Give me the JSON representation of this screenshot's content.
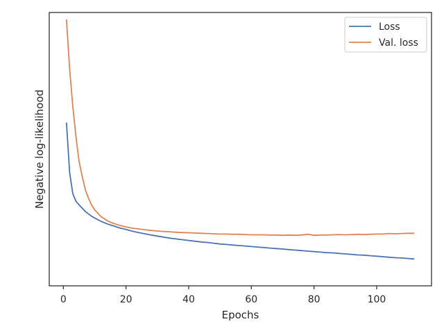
{
  "chart_data": {
    "type": "line",
    "title": "",
    "xlabel": "Epochs",
    "ylabel": "Negative log-likelihood",
    "xlim": [
      -4.5,
      117.5
    ],
    "ylim": [
      0.0,
      1.0
    ],
    "xticks": [
      0,
      20,
      40,
      60,
      80,
      100
    ],
    "yticks": [],
    "grid": false,
    "legend": "top-right",
    "colors": {
      "Loss": "#4c72b0",
      "Val. loss": "#dd8452",
      "axis": "#262626"
    },
    "series": [
      {
        "name": "Loss",
        "points": [
          [
            1,
            0.595
          ],
          [
            2,
            0.398
          ],
          [
            3,
            0.316
          ],
          [
            4,
            0.286
          ],
          [
            5,
            0.272
          ],
          [
            6,
            0.259
          ],
          [
            7,
            0.246
          ],
          [
            8,
            0.236
          ],
          [
            9,
            0.227
          ],
          [
            10,
            0.22
          ],
          [
            12,
            0.207
          ],
          [
            14,
            0.197
          ],
          [
            16,
            0.189
          ],
          [
            18,
            0.181
          ],
          [
            20,
            0.175
          ],
          [
            22,
            0.168
          ],
          [
            24,
            0.163
          ],
          [
            26,
            0.158
          ],
          [
            28,
            0.153
          ],
          [
            30,
            0.149
          ],
          [
            32,
            0.145
          ],
          [
            34,
            0.141
          ],
          [
            36,
            0.138
          ],
          [
            38,
            0.135
          ],
          [
            40,
            0.132
          ],
          [
            42,
            0.129
          ],
          [
            44,
            0.126
          ],
          [
            46,
            0.124
          ],
          [
            48,
            0.121
          ],
          [
            50,
            0.118
          ],
          [
            52,
            0.116
          ],
          [
            54,
            0.114
          ],
          [
            56,
            0.112
          ],
          [
            58,
            0.11
          ],
          [
            60,
            0.108
          ],
          [
            62,
            0.106
          ],
          [
            64,
            0.104
          ],
          [
            66,
            0.102
          ],
          [
            68,
            0.1
          ],
          [
            70,
            0.098
          ],
          [
            72,
            0.096
          ],
          [
            74,
            0.094
          ],
          [
            76,
            0.092
          ],
          [
            78,
            0.09
          ],
          [
            80,
            0.088
          ],
          [
            82,
            0.086
          ],
          [
            84,
            0.084
          ],
          [
            86,
            0.083
          ],
          [
            88,
            0.081
          ],
          [
            90,
            0.079
          ],
          [
            92,
            0.077
          ],
          [
            94,
            0.075
          ],
          [
            96,
            0.074
          ],
          [
            98,
            0.072
          ],
          [
            100,
            0.07
          ],
          [
            102,
            0.068
          ],
          [
            104,
            0.066
          ],
          [
            106,
            0.064
          ],
          [
            108,
            0.063
          ],
          [
            110,
            0.061
          ],
          [
            112,
            0.059
          ]
        ]
      },
      {
        "name": "Val. loss",
        "points": [
          [
            1,
            1.0
          ],
          [
            2,
            0.805
          ],
          [
            3,
            0.659
          ],
          [
            4,
            0.542
          ],
          [
            5,
            0.443
          ],
          [
            6,
            0.385
          ],
          [
            7,
            0.332
          ],
          [
            8,
            0.298
          ],
          [
            9,
            0.271
          ],
          [
            10,
            0.252
          ],
          [
            12,
            0.226
          ],
          [
            14,
            0.209
          ],
          [
            16,
            0.199
          ],
          [
            18,
            0.191
          ],
          [
            20,
            0.185
          ],
          [
            22,
            0.18
          ],
          [
            24,
            0.177
          ],
          [
            26,
            0.174
          ],
          [
            28,
            0.171
          ],
          [
            30,
            0.169
          ],
          [
            32,
            0.167
          ],
          [
            34,
            0.166
          ],
          [
            36,
            0.164
          ],
          [
            38,
            0.163
          ],
          [
            40,
            0.162
          ],
          [
            42,
            0.161
          ],
          [
            44,
            0.16
          ],
          [
            46,
            0.159
          ],
          [
            48,
            0.158
          ],
          [
            50,
            0.157
          ],
          [
            52,
            0.157
          ],
          [
            54,
            0.156
          ],
          [
            56,
            0.156
          ],
          [
            58,
            0.155
          ],
          [
            60,
            0.154
          ],
          [
            62,
            0.154
          ],
          [
            64,
            0.154
          ],
          [
            66,
            0.153
          ],
          [
            68,
            0.153
          ],
          [
            70,
            0.152
          ],
          [
            72,
            0.153
          ],
          [
            74,
            0.152
          ],
          [
            76,
            0.153
          ],
          [
            78,
            0.156
          ],
          [
            80,
            0.152
          ],
          [
            82,
            0.153
          ],
          [
            84,
            0.153
          ],
          [
            86,
            0.154
          ],
          [
            88,
            0.155
          ],
          [
            90,
            0.154
          ],
          [
            92,
            0.155
          ],
          [
            94,
            0.156
          ],
          [
            96,
            0.155
          ],
          [
            98,
            0.156
          ],
          [
            100,
            0.157
          ],
          [
            102,
            0.157
          ],
          [
            104,
            0.159
          ],
          [
            106,
            0.158
          ],
          [
            108,
            0.159
          ],
          [
            110,
            0.16
          ],
          [
            112,
            0.16
          ]
        ]
      }
    ]
  }
}
